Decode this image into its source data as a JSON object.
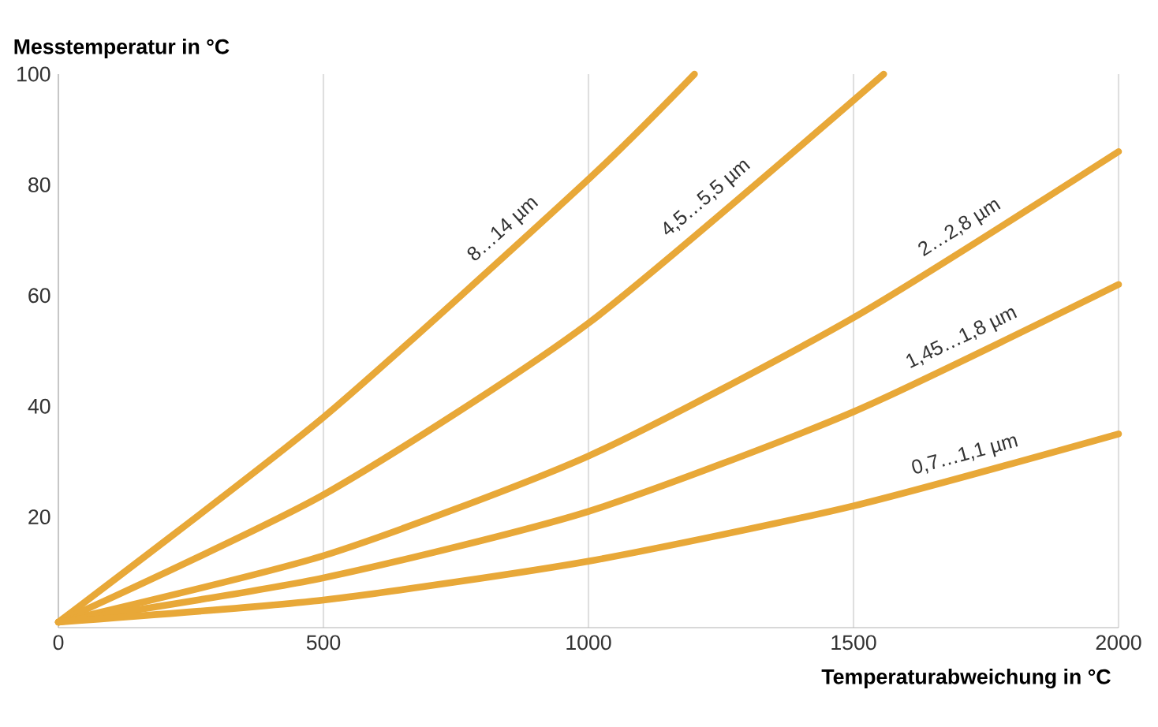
{
  "chart_data": {
    "type": "line",
    "xlabel": "Temperaturabweichung in °C",
    "ylabel": "Messtemperatur in °C",
    "xlim": [
      0,
      2000
    ],
    "ylim": [
      0,
      100
    ],
    "xticks": [
      0,
      500,
      1000,
      1500,
      2000
    ],
    "yticks": [
      20,
      40,
      60,
      80,
      100
    ],
    "grid": "x",
    "legend": false,
    "marker": "none",
    "line_style": "solid",
    "series": [
      {
        "name": "8…14 µm",
        "color": "#e8a838",
        "x": [
          0,
          500,
          1000,
          1200
        ],
        "values": [
          1,
          38,
          81,
          100
        ]
      },
      {
        "name": "4,5…5,5 µm",
        "color": "#e8a838",
        "x": [
          0,
          500,
          1000,
          1557
        ],
        "values": [
          1,
          24,
          55,
          100
        ]
      },
      {
        "name": "2…2,8 µm",
        "color": "#e8a838",
        "x": [
          0,
          500,
          1000,
          1500,
          2000
        ],
        "values": [
          1,
          13,
          31,
          56,
          86
        ]
      },
      {
        "name": "1,45…1,8 µm",
        "color": "#e8a838",
        "x": [
          0,
          500,
          1000,
          1500,
          2000
        ],
        "values": [
          1,
          9,
          21,
          39,
          62
        ]
      },
      {
        "name": "0,7…1,1 µm",
        "color": "#e8a838",
        "x": [
          0,
          500,
          1000,
          1500,
          2000
        ],
        "values": [
          1,
          5,
          12,
          22,
          35
        ]
      }
    ]
  }
}
